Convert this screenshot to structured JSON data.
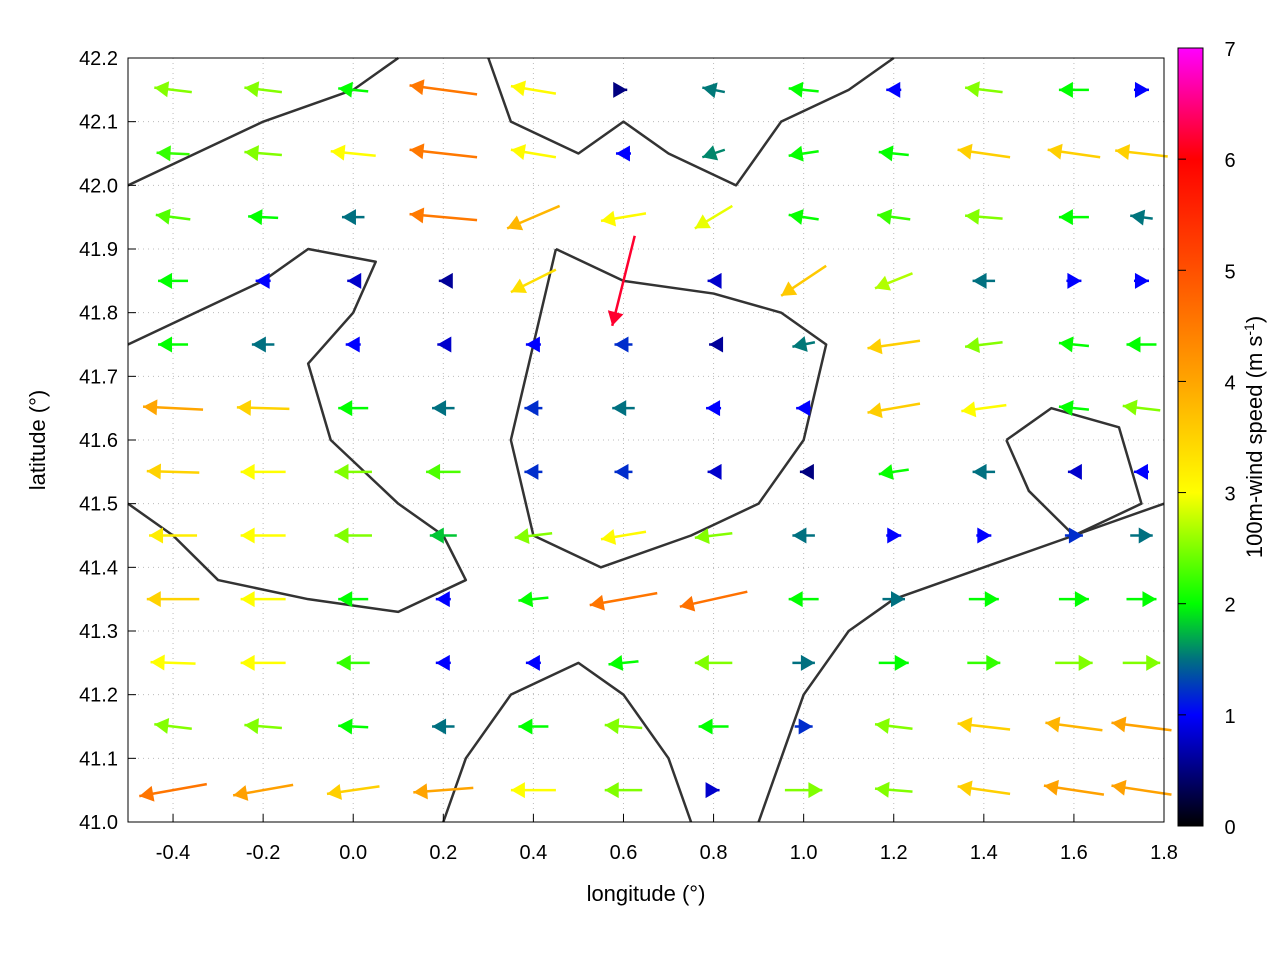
{
  "chart_data": {
    "type": "vector-field",
    "xlabel": "longitude (°)",
    "ylabel": "latitude (°)",
    "xlim": [
      -0.5,
      1.8
    ],
    "ylim": [
      41.0,
      42.2
    ],
    "xticks": [
      "-0.4",
      "-0.2",
      "0.0",
      "0.2",
      "0.4",
      "0.6",
      "0.8",
      "1.0",
      "1.2",
      "1.4",
      "1.6",
      "1.8"
    ],
    "yticks": [
      "41.0",
      "41.1",
      "41.2",
      "41.3",
      "41.4",
      "41.5",
      "41.6",
      "41.7",
      "41.8",
      "41.9",
      "42.0",
      "42.1",
      "42.2"
    ],
    "grid": true,
    "colorbar": {
      "label": "100m-wind speed (m s",
      "label_sup": "-1",
      "label_end": ")",
      "range": [
        0,
        7
      ],
      "ticks": [
        "0",
        "1",
        "2",
        "3",
        "4",
        "5",
        "6",
        "7"
      ],
      "stops": [
        [
          0,
          "#000000"
        ],
        [
          1,
          "#0000ff"
        ],
        [
          1.5,
          "#007080"
        ],
        [
          2,
          "#00ff00"
        ],
        [
          3,
          "#ffff00"
        ],
        [
          4,
          "#ffa500"
        ],
        [
          5,
          "#ff5000"
        ],
        [
          6,
          "#ff0000"
        ],
        [
          7,
          "#ff00ff"
        ]
      ]
    },
    "vector_lons": [
      -0.4,
      -0.2,
      0.0,
      0.2,
      0.4,
      0.6,
      0.8,
      1.0,
      1.2,
      1.4,
      1.6,
      1.75
    ],
    "vector_lats": [
      42.15,
      42.05,
      41.95,
      41.85,
      41.75,
      41.65,
      41.55,
      41.45,
      41.35,
      41.25,
      41.15,
      41.05
    ],
    "vectors_uv": [
      [
        [
          -2.5,
          0.3
        ],
        [
          -2.5,
          0.3
        ],
        [
          -2,
          0.2
        ],
        [
          -4.5,
          0.6
        ],
        [
          -3,
          0.5
        ],
        [
          0.5,
          0
        ],
        [
          -1.5,
          0.3
        ],
        [
          -2,
          0.2
        ],
        [
          -1,
          0
        ],
        [
          -2.5,
          0.3
        ],
        [
          -2,
          0
        ],
        [
          1,
          0
        ]
      ],
      [
        [
          -2.2,
          0.1
        ],
        [
          -2.5,
          0.2
        ],
        [
          -3,
          0.3
        ],
        [
          -4.5,
          0.5
        ],
        [
          -3,
          0.5
        ],
        [
          -1,
          0
        ],
        [
          -1.5,
          -0.5
        ],
        [
          -2,
          -0.3
        ],
        [
          -2,
          0.2
        ],
        [
          -3.5,
          0.5
        ],
        [
          -3.5,
          0.5
        ],
        [
          -3.5,
          0.4
        ]
      ],
      [
        [
          -2.3,
          0.3
        ],
        [
          -2,
          0.1
        ],
        [
          -1.5,
          0
        ],
        [
          -4.5,
          0.4
        ],
        [
          -3.5,
          -1.5
        ],
        [
          -3,
          -0.5
        ],
        [
          -2.5,
          -1.5
        ],
        [
          -2,
          0.3
        ],
        [
          -2.2,
          0.3
        ],
        [
          -2.5,
          0.2
        ],
        [
          -2,
          0
        ],
        [
          -1.5,
          0.2
        ]
      ],
      [
        [
          -2,
          0
        ],
        [
          -1,
          0
        ],
        [
          -0.8,
          0
        ],
        [
          -0.6,
          0
        ],
        [
          -3,
          -1.5
        ],
        [
          -1.5,
          -6
        ],
        [
          -0.8,
          0
        ],
        [
          -3,
          -2
        ],
        [
          -2.5,
          -1
        ],
        [
          -1.5,
          0
        ],
        [
          1,
          0
        ],
        [
          1,
          0
        ]
      ],
      [
        [
          -2,
          0
        ],
        [
          -1.5,
          0
        ],
        [
          -1,
          0
        ],
        [
          -0.8,
          0
        ],
        [
          -1,
          0
        ],
        [
          -1.2,
          0
        ],
        [
          -0.6,
          0
        ],
        [
          -1.5,
          -0.3
        ],
        [
          -3.5,
          -0.5
        ],
        [
          -2.5,
          -0.3
        ],
        [
          -2,
          0.2
        ],
        [
          -2,
          0
        ]
      ],
      [
        [
          -4,
          0.2
        ],
        [
          -3.5,
          0.1
        ],
        [
          -2,
          0
        ],
        [
          -1.5,
          0
        ],
        [
          -1.2,
          0
        ],
        [
          -1.5,
          0
        ],
        [
          -1,
          0
        ],
        [
          -1,
          0
        ],
        [
          -3.5,
          -0.6
        ],
        [
          -3,
          -0.4
        ],
        [
          -2,
          0.2
        ],
        [
          -2.5,
          0.3
        ]
      ],
      [
        [
          -3.5,
          0.1
        ],
        [
          -3,
          0
        ],
        [
          -2.5,
          0
        ],
        [
          -2.3,
          0
        ],
        [
          -1.2,
          0
        ],
        [
          -1.2,
          0
        ],
        [
          -0.8,
          0
        ],
        [
          -0.5,
          0
        ],
        [
          -2,
          -0.3
        ],
        [
          -1.5,
          0
        ],
        [
          -0.8,
          0
        ],
        [
          -1,
          0
        ]
      ],
      [
        [
          -3.2,
          0
        ],
        [
          -3,
          0
        ],
        [
          -2.5,
          0
        ],
        [
          -1.8,
          0
        ],
        [
          -2.5,
          -0.3
        ],
        [
          -3,
          -0.5
        ],
        [
          -2.5,
          -0.3
        ],
        [
          -1.5,
          0
        ],
        [
          1,
          0
        ],
        [
          1,
          0
        ],
        [
          1.2,
          0
        ],
        [
          1.5,
          0
        ]
      ],
      [
        [
          -3.5,
          0
        ],
        [
          -3,
          0
        ],
        [
          -2,
          0
        ],
        [
          -1,
          0
        ],
        [
          -2,
          -0.2
        ],
        [
          -4.5,
          -0.8
        ],
        [
          -4.5,
          -1
        ],
        [
          -2,
          0
        ],
        [
          1.5,
          0
        ],
        [
          2,
          0
        ],
        [
          2,
          0
        ],
        [
          2,
          0
        ]
      ],
      [
        [
          -3,
          0.1
        ],
        [
          -3,
          0
        ],
        [
          -2.2,
          0
        ],
        [
          -1,
          0
        ],
        [
          -1,
          0
        ],
        [
          -2,
          -0.2
        ],
        [
          -2.5,
          0
        ],
        [
          1.5,
          0
        ],
        [
          2,
          0
        ],
        [
          2.2,
          0
        ],
        [
          2.5,
          0
        ],
        [
          2.5,
          0
        ]
      ],
      [
        [
          -2.5,
          0.3
        ],
        [
          -2.5,
          0.2
        ],
        [
          -2,
          0.1
        ],
        [
          -1.5,
          0
        ],
        [
          -2,
          0
        ],
        [
          -2.5,
          0.2
        ],
        [
          -2,
          0
        ],
        [
          1.2,
          0
        ],
        [
          -2.5,
          0.3
        ],
        [
          -3.5,
          0.4
        ],
        [
          -3.8,
          0.5
        ],
        [
          -4,
          0.5
        ]
      ],
      [
        [
          -4.5,
          -0.8
        ],
        [
          -4,
          -0.7
        ],
        [
          -3.5,
          -0.5
        ],
        [
          -4,
          -0.3
        ],
        [
          -3,
          0
        ],
        [
          -2.5,
          0
        ],
        [
          0.8,
          0
        ],
        [
          2.5,
          0
        ],
        [
          -2.5,
          0.2
        ],
        [
          -3.5,
          0.5
        ],
        [
          -4,
          0.6
        ],
        [
          -4,
          0.6
        ]
      ]
    ],
    "contours": [
      [
        [
          -0.5,
          41.75
        ],
        [
          -0.35,
          41.8
        ],
        [
          -0.2,
          41.85
        ],
        [
          -0.1,
          41.9
        ],
        [
          0.05,
          41.88
        ],
        [
          0.0,
          41.8
        ],
        [
          -0.1,
          41.72
        ],
        [
          -0.05,
          41.6
        ],
        [
          0.1,
          41.5
        ],
        [
          0.2,
          41.45
        ],
        [
          0.25,
          41.38
        ],
        [
          0.1,
          41.33
        ],
        [
          -0.1,
          41.35
        ],
        [
          -0.3,
          41.38
        ],
        [
          -0.4,
          41.45
        ],
        [
          -0.5,
          41.5
        ]
      ],
      [
        [
          0.45,
          41.9
        ],
        [
          0.6,
          41.85
        ],
        [
          0.8,
          41.83
        ],
        [
          0.95,
          41.8
        ],
        [
          1.05,
          41.75
        ],
        [
          1.0,
          41.6
        ],
        [
          0.9,
          41.5
        ],
        [
          0.75,
          41.45
        ],
        [
          0.55,
          41.4
        ],
        [
          0.4,
          41.45
        ],
        [
          0.35,
          41.6
        ],
        [
          0.4,
          41.75
        ],
        [
          0.45,
          41.9
        ]
      ],
      [
        [
          0.9,
          41.0
        ],
        [
          0.95,
          41.1
        ],
        [
          1.0,
          41.2
        ],
        [
          1.1,
          41.3
        ],
        [
          1.2,
          41.35
        ],
        [
          1.4,
          41.4
        ],
        [
          1.6,
          41.45
        ],
        [
          1.8,
          41.5
        ]
      ],
      [
        [
          0.3,
          42.2
        ],
        [
          0.35,
          42.1
        ],
        [
          0.5,
          42.05
        ],
        [
          0.6,
          42.1
        ],
        [
          0.7,
          42.05
        ],
        [
          0.85,
          42.0
        ],
        [
          0.95,
          42.1
        ],
        [
          1.1,
          42.15
        ],
        [
          1.2,
          42.2
        ]
      ],
      [
        [
          0.2,
          41.0
        ],
        [
          0.25,
          41.1
        ],
        [
          0.35,
          41.2
        ],
        [
          0.5,
          41.25
        ],
        [
          0.6,
          41.2
        ],
        [
          0.7,
          41.1
        ],
        [
          0.75,
          41.0
        ]
      ],
      [
        [
          1.45,
          41.6
        ],
        [
          1.55,
          41.65
        ],
        [
          1.7,
          41.62
        ],
        [
          1.75,
          41.5
        ],
        [
          1.6,
          41.45
        ],
        [
          1.5,
          41.52
        ],
        [
          1.45,
          41.6
        ]
      ],
      [
        [
          -0.5,
          42.0
        ],
        [
          -0.35,
          42.05
        ],
        [
          -0.2,
          42.1
        ],
        [
          0.0,
          42.15
        ],
        [
          0.1,
          42.2
        ]
      ]
    ]
  }
}
